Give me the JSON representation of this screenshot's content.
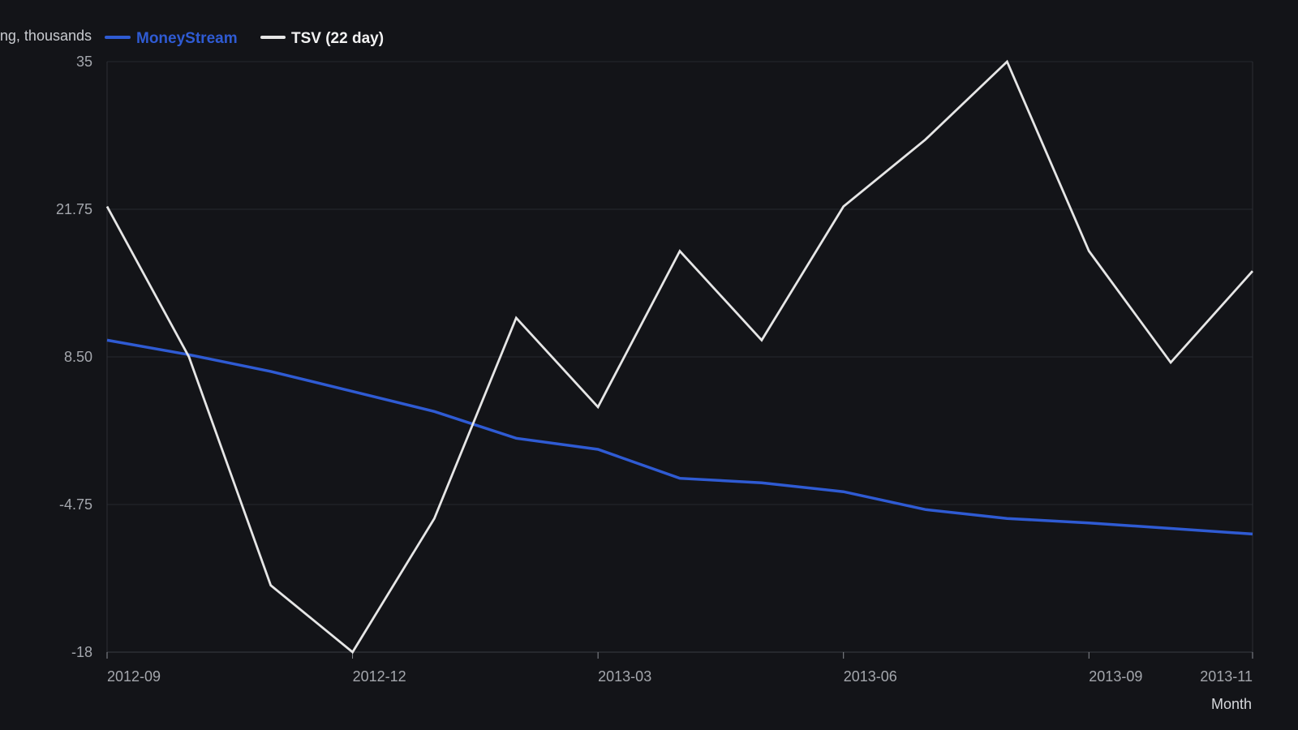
{
  "chart_data": {
    "type": "line",
    "ylabel": "…ng, thousands",
    "xlabel": "Month",
    "ylim": [
      -18,
      35
    ],
    "yticks": [
      "35",
      "21.75",
      "8.50",
      "-4.75",
      "-18"
    ],
    "ytick_values": [
      35,
      21.75,
      8.5,
      -4.75,
      -18
    ],
    "x": [
      "2012-09",
      "2012-10",
      "2012-11",
      "2012-12",
      "2013-01",
      "2013-02",
      "2013-03",
      "2013-04",
      "2013-05",
      "2013-06",
      "2013-07",
      "2013-08",
      "2013-09",
      "2013-10",
      "2013-11"
    ],
    "xtick_labels": [
      "2012-09",
      "2012-12",
      "2013-03",
      "2013-06",
      "2013-09",
      "2013-11"
    ],
    "grid": true,
    "legend_position": "top-left",
    "series": [
      {
        "name": "MoneyStream",
        "color": "#2f5bd3",
        "values": [
          10.0,
          8.7,
          7.2,
          5.4,
          3.6,
          1.2,
          0.2,
          -2.4,
          -2.8,
          -3.6,
          -5.2,
          -6.0,
          -6.4,
          -6.9,
          -7.4
        ]
      },
      {
        "name": "TSV (22 day)",
        "color": "#e6e6e6",
        "values": [
          22.0,
          8.5,
          -12.0,
          -18.0,
          -6.0,
          12.0,
          4.0,
          18.0,
          10.0,
          22.0,
          28.0,
          35.0,
          18.0,
          8.0,
          16.2
        ]
      }
    ]
  }
}
